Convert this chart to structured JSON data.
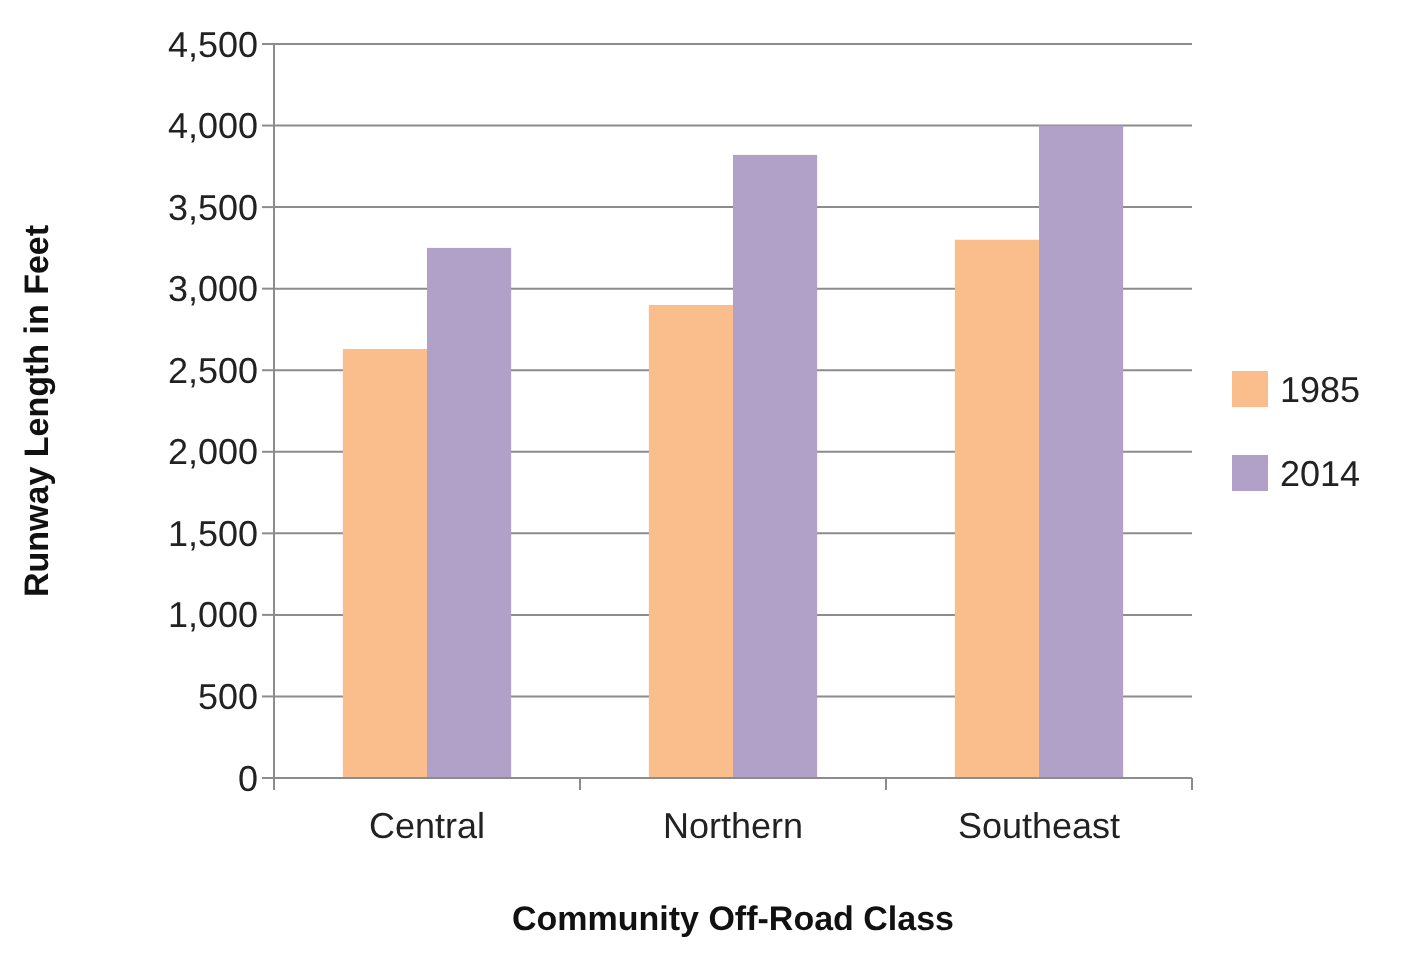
{
  "chart_data": {
    "type": "bar",
    "xlabel": "Community Off-Road Class",
    "ylabel": "Runway Length in Feet",
    "categories": [
      "Central",
      "Northern",
      "Southeast"
    ],
    "series": [
      {
        "name": "1985",
        "color": "#f9be8c",
        "values": [
          2630,
          2900,
          3300
        ]
      },
      {
        "name": "2014",
        "color": "#b1a0c7",
        "values": [
          3250,
          3820,
          4000
        ]
      }
    ],
    "ylim": [
      0,
      4500
    ],
    "yticks": [
      {
        "value": 0,
        "label": "0"
      },
      {
        "value": 500,
        "label": "500"
      },
      {
        "value": 1000,
        "label": "1,000"
      },
      {
        "value": 1500,
        "label": "1,500"
      },
      {
        "value": 2000,
        "label": "2,000"
      },
      {
        "value": 2500,
        "label": "2,500"
      },
      {
        "value": 3000,
        "label": "3,000"
      },
      {
        "value": 3500,
        "label": "3,500"
      },
      {
        "value": 4000,
        "label": "4,000"
      },
      {
        "value": 4500,
        "label": "4,500"
      }
    ],
    "grid": "y",
    "legend": "right"
  }
}
